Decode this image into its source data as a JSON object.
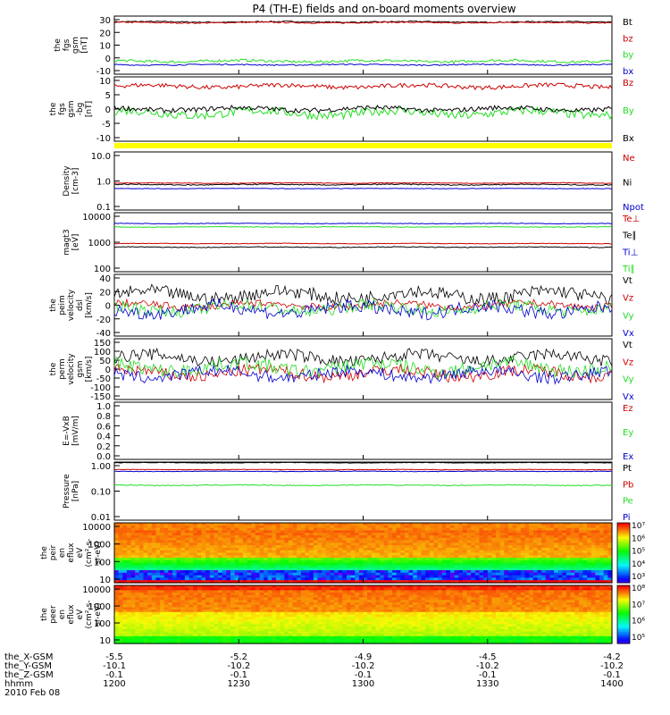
{
  "title": "P4 (TH-E) fields and on-board moments overview",
  "colors": {
    "black": "#000000",
    "red": "#cc0000",
    "green": "#22dd22",
    "blue": "#0000cc",
    "yellow": "#ffff00"
  },
  "panels": [
    {
      "ylabel": [
        "the",
        "fgs",
        "gsm",
        "[nT]"
      ],
      "yticks": [
        "30",
        "20",
        "10",
        "0",
        "-10"
      ],
      "ylim": [
        -10,
        30
      ],
      "series": [
        {
          "name": "Bt",
          "color": "#000000",
          "level": 26,
          "noise": 0.4
        },
        {
          "name": "bz",
          "color": "#cc0000",
          "level": 25.5,
          "noise": 0.4
        },
        {
          "name": "by",
          "color": "#22dd22",
          "level": -1.0,
          "noise": 0.9
        },
        {
          "name": "bx",
          "color": "#0000cc",
          "level": -3.5,
          "noise": 0.4
        }
      ]
    },
    {
      "ylabel": [
        "the",
        "fgs",
        "gsm",
        "-bg",
        "[nT]"
      ],
      "yticks": [
        "10",
        "5",
        "0",
        "-5",
        "-10"
      ],
      "ylim": [
        -13,
        11
      ],
      "series": [
        {
          "name": "Bz",
          "color": "#cc0000",
          "level": 7.5,
          "noise": 0.8
        },
        {
          "name": "By",
          "color": "#22dd22",
          "level": -2.5,
          "noise": 1.6
        },
        {
          "name": "Bx",
          "color": "#000000",
          "level": -1.0,
          "noise": 0.9
        }
      ]
    },
    {
      "ylabel": [
        "Density",
        "[cm-3]"
      ],
      "yticks": [
        "10.0",
        "1.0",
        "0.1"
      ],
      "ylim": [
        0.1,
        10
      ],
      "series": [
        {
          "name": "Ne",
          "color": "#cc0000",
          "level": 0.85,
          "noise": 0.02
        },
        {
          "name": "Ni",
          "color": "#000000",
          "level": 0.75,
          "noise": 0.03
        },
        {
          "name": "Npot",
          "color": "#0000cc",
          "level": 0.55,
          "noise": 0.01
        }
      ]
    },
    {
      "ylabel": [
        "magt3",
        "[eV]"
      ],
      "yticks": [
        "10000",
        "1000",
        "100"
      ],
      "ylim": [
        100,
        10000
      ],
      "series": [
        {
          "name": "Te⊥",
          "color": "#cc0000",
          "level": 900,
          "noise": 20
        },
        {
          "name": "Te∥",
          "color": "#000000",
          "level": 680,
          "noise": 20
        },
        {
          "name": "Ti⊥",
          "color": "#0000cc",
          "level": 4300,
          "noise": 100
        },
        {
          "name": "Ti∥",
          "color": "#22dd22",
          "level": 3300,
          "noise": 80
        }
      ]
    },
    {
      "ylabel": [
        "the",
        "peim",
        "velocity",
        "dsl",
        "[km/s]"
      ],
      "yticks": [
        "40",
        "20",
        "0",
        "-20",
        "-40"
      ],
      "ylim": [
        -42,
        42
      ],
      "series": [
        {
          "name": "Vt",
          "color": "#000000",
          "level": 14,
          "noise": 9
        },
        {
          "name": "Vz",
          "color": "#cc0000",
          "level": 0,
          "noise": 5
        },
        {
          "name": "Vy",
          "color": "#22dd22",
          "level": -4,
          "noise": 8
        },
        {
          "name": "Vx",
          "color": "#0000cc",
          "level": -6,
          "noise": 9
        }
      ]
    },
    {
      "ylabel": [
        "the",
        "perm",
        "velocity",
        "gsm",
        "[km/s]"
      ],
      "yticks": [
        "150",
        "100",
        "50",
        "0",
        "-50",
        "-100",
        "-150"
      ],
      "ylim": [
        -150,
        150
      ],
      "series": [
        {
          "name": "Vt",
          "color": "#000000",
          "level": 55,
          "noise": 30
        },
        {
          "name": "Vz",
          "color": "#cc0000",
          "level": -20,
          "noise": 30
        },
        {
          "name": "Vy",
          "color": "#22dd22",
          "level": 10,
          "noise": 35
        },
        {
          "name": "Vx",
          "color": "#0000cc",
          "level": -25,
          "noise": 30
        }
      ]
    },
    {
      "ylabel": [
        "E=-VxB",
        "[mV/m]"
      ],
      "yticks": [
        "1.0",
        "0.8",
        "0.6",
        "0.4",
        "0.2",
        "0.0"
      ],
      "ylim": [
        0,
        1
      ],
      "series": [
        {
          "name": "Ez",
          "color": "#cc0000"
        },
        {
          "name": "Ey",
          "color": "#22dd22"
        },
        {
          "name": "Ex",
          "color": "#0000cc"
        }
      ]
    },
    {
      "ylabel": [
        "Pressure",
        "[nPa]"
      ],
      "yticks": [
        "1.00",
        "0.10",
        "0.01"
      ],
      "ylim": [
        0.01,
        1
      ],
      "series": [
        {
          "name": "Pt",
          "color": "#000000",
          "level": 0.95,
          "noise": 0.02
        },
        {
          "name": "Pb",
          "color": "#cc0000",
          "level": 0.55,
          "noise": 0.01
        },
        {
          "name": "Pe",
          "color": "#22dd22",
          "level": 0.16,
          "noise": 0.005
        },
        {
          "name": "Pi",
          "color": "#0000cc",
          "level": 0.48,
          "noise": 0.01
        }
      ]
    },
    {
      "ylabel": [
        "the",
        "peir",
        "en",
        "eflux",
        "eV",
        "(cm²-s-",
        "sr-eV)"
      ],
      "yticks": [
        "10000",
        "1000",
        "100",
        "10"
      ],
      "ylim": [
        10,
        20000
      ],
      "colorbar": [
        "10⁷",
        "10⁶",
        "10⁵",
        "10⁴",
        "10³"
      ]
    },
    {
      "ylabel": [
        "the",
        "peer",
        "en",
        "eflux",
        "eV",
        "(cm²-s-",
        "sr-eV)"
      ],
      "yticks": [
        "10000",
        "1000",
        "100",
        "10"
      ],
      "ylim": [
        10,
        20000
      ],
      "colorbar": [
        "10⁸",
        "10⁷",
        "10⁶",
        "10⁵"
      ]
    }
  ],
  "xaxis": {
    "tick_labels": [
      "1200",
      "1230",
      "1300",
      "1330",
      "1400"
    ],
    "rows": [
      {
        "label": "the_X-GSM",
        "values": [
          "-5.5",
          "-5.2",
          "-4.9",
          "-4.5",
          "-4.2"
        ]
      },
      {
        "label": "the_Y-GSM",
        "values": [
          "-10.1",
          "-10.2",
          "-10.2",
          "-10.2",
          "-10.2"
        ]
      },
      {
        "label": "the_Z-GSM",
        "values": [
          "-0.1",
          "-0.1",
          "-0.1",
          "-0.1",
          "-0.1"
        ]
      },
      {
        "label": "hhmm",
        "values": [
          "1200",
          "1230",
          "1300",
          "1330",
          "1400"
        ]
      }
    ],
    "date": "2010 Feb 08"
  },
  "chart_data": {
    "type": "line",
    "title": "P4 (TH-E) fields and on-board moments overview",
    "x": [
      "1200",
      "1230",
      "1300",
      "1330",
      "1400"
    ],
    "xlabel": "hhmm",
    "date": "2010 Feb 08",
    "series": [
      {
        "name": "Bt",
        "approx": 26
      },
      {
        "name": "bz",
        "approx": 25.5
      },
      {
        "name": "by",
        "approx": -1
      },
      {
        "name": "bx",
        "approx": -3.5
      },
      {
        "name": "Bz",
        "approx": 7.5
      },
      {
        "name": "By",
        "approx": -2.5
      },
      {
        "name": "Bx",
        "approx": -1
      },
      {
        "name": "Ne",
        "approx": 0.85
      },
      {
        "name": "Ni",
        "approx": 0.75
      },
      {
        "name": "Npot",
        "approx": 0.55
      },
      {
        "name": "Te⊥",
        "approx": 900
      },
      {
        "name": "Te∥",
        "approx": 680
      },
      {
        "name": "Ti⊥",
        "approx": 4300
      },
      {
        "name": "Ti∥",
        "approx": 3300
      },
      {
        "name": "Pt",
        "approx": 0.95
      },
      {
        "name": "Pb",
        "approx": 0.55
      },
      {
        "name": "Pe",
        "approx": 0.16
      },
      {
        "name": "Pi",
        "approx": 0.48
      }
    ]
  }
}
